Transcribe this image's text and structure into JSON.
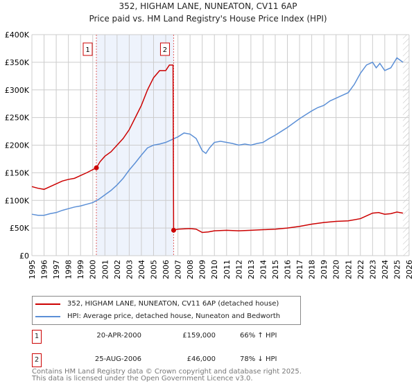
{
  "title": "352, HIGHAM LANE, NUNEATON, CV11 6AP",
  "subtitle": "Price paid vs. HM Land Registry's House Price Index (HPI)",
  "chart_data": {
    "type": "line",
    "ylim": [
      0,
      400000
    ],
    "xlim": [
      1995,
      2026
    ],
    "yticks": [
      {
        "v": 0,
        "label": "£0"
      },
      {
        "v": 50000,
        "label": "£50K"
      },
      {
        "v": 100000,
        "label": "£100K"
      },
      {
        "v": 150000,
        "label": "£150K"
      },
      {
        "v": 200000,
        "label": "£200K"
      },
      {
        "v": 250000,
        "label": "£250K"
      },
      {
        "v": 300000,
        "label": "£300K"
      },
      {
        "v": 350000,
        "label": "£350K"
      },
      {
        "v": 400000,
        "label": "£400K"
      }
    ],
    "xticks": [
      "1995",
      "1996",
      "1997",
      "1998",
      "1999",
      "2000",
      "2001",
      "2002",
      "2003",
      "2004",
      "2005",
      "2006",
      "2007",
      "2008",
      "2009",
      "2010",
      "2011",
      "2012",
      "2013",
      "2014",
      "2015",
      "2016",
      "2017",
      "2018",
      "2019",
      "2020",
      "2021",
      "2022",
      "2023",
      "2024",
      "2025",
      "2026"
    ],
    "series": [
      {
        "name": "352, HIGHAM LANE, NUNEATON, CV11 6AP (detached house)",
        "color": "#cc0000",
        "x": [
          1995,
          1995.5,
          1996,
          1996.5,
          1997,
          1997.5,
          1998,
          1998.5,
          1999,
          1999.5,
          2000.3,
          2000.6,
          2001,
          2001.5,
          2002,
          2002.5,
          2003,
          2003.5,
          2004,
          2004.5,
          2005,
          2005.5,
          2006,
          2006.3,
          2006.6,
          2006.65,
          2007,
          2008,
          2008.5,
          2009,
          2009.5,
          2010,
          2011,
          2012,
          2013,
          2014,
          2015,
          2016,
          2017,
          2018,
          2019,
          2020,
          2021,
          2022,
          2022.5,
          2023,
          2023.5,
          2024,
          2024.5,
          2025,
          2025.5
        ],
        "y": [
          125000,
          122000,
          120000,
          125000,
          130000,
          135000,
          138000,
          140000,
          145000,
          150000,
          159000,
          170000,
          180000,
          188000,
          200000,
          212000,
          228000,
          250000,
          272000,
          300000,
          322000,
          335000,
          335000,
          345000,
          345000,
          46000,
          48000,
          49000,
          48000,
          42000,
          43000,
          45000,
          46000,
          45000,
          46000,
          47000,
          48000,
          50000,
          53000,
          57000,
          60000,
          62000,
          63000,
          67000,
          72000,
          77000,
          78000,
          75000,
          76000,
          79000,
          77000
        ]
      },
      {
        "name": "HPI: Average price, detached house, Nuneaton and Bedworth",
        "color": "#5b8fd6",
        "x": [
          1995,
          1995.5,
          1996,
          1996.5,
          1997,
          1997.5,
          1998,
          1998.5,
          1999,
          1999.5,
          2000,
          2000.5,
          2001,
          2001.5,
          2002,
          2002.5,
          2003,
          2003.5,
          2004,
          2004.5,
          2005,
          2005.5,
          2006,
          2006.5,
          2007,
          2007.5,
          2008,
          2008.5,
          2009,
          2009.3,
          2009.6,
          2010,
          2010.5,
          2011,
          2011.5,
          2012,
          2012.5,
          2013,
          2013.5,
          2014,
          2014.5,
          2015,
          2015.5,
          2016,
          2016.5,
          2017,
          2017.5,
          2018,
          2018.5,
          2019,
          2019.5,
          2020,
          2020.5,
          2021,
          2021.5,
          2022,
          2022.5,
          2023,
          2023.3,
          2023.6,
          2024,
          2024.5,
          2025,
          2025.5
        ],
        "y": [
          75000,
          73000,
          73000,
          76000,
          78000,
          82000,
          85000,
          88000,
          90000,
          93000,
          96000,
          102000,
          110000,
          118000,
          128000,
          140000,
          155000,
          168000,
          182000,
          195000,
          200000,
          202000,
          205000,
          210000,
          215000,
          222000,
          220000,
          212000,
          190000,
          185000,
          195000,
          205000,
          207000,
          205000,
          203000,
          200000,
          202000,
          200000,
          203000,
          205000,
          212000,
          218000,
          225000,
          232000,
          240000,
          248000,
          255000,
          262000,
          268000,
          272000,
          280000,
          285000,
          290000,
          295000,
          310000,
          330000,
          345000,
          350000,
          340000,
          348000,
          335000,
          340000,
          358000,
          350000
        ]
      }
    ],
    "annotations": [
      {
        "label": "1",
        "x": 2000.3
      },
      {
        "label": "2",
        "x": 2006.65
      }
    ],
    "shaded_range": [
      2000.3,
      2006.65
    ],
    "hatched_from": 2025.5
  },
  "legend": [
    {
      "label": "352, HIGHAM LANE, NUNEATON, CV11 6AP (detached house)",
      "color": "#cc0000"
    },
    {
      "label": "HPI: Average price, detached house, Nuneaton and Bedworth",
      "color": "#5b8fd6"
    }
  ],
  "transactions": [
    {
      "num": "1",
      "date": "20-APR-2000",
      "price": "£159,000",
      "hpi": "66% ↑ HPI"
    },
    {
      "num": "2",
      "date": "25-AUG-2006",
      "price": "£46,000",
      "hpi": "78% ↓ HPI"
    }
  ],
  "footer": [
    "Contains HM Land Registry data © Crown copyright and database right 2025.",
    "This data is licensed under the Open Government Licence v3.0."
  ]
}
